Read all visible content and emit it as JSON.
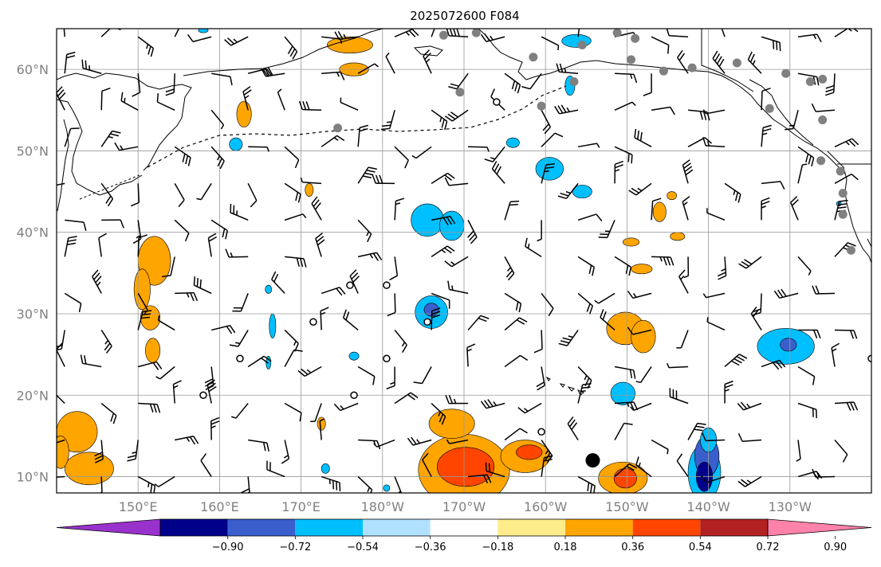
{
  "title": "2025072600 F084",
  "map": {
    "lon_range": [
      140,
      240
    ],
    "lat_range": [
      8,
      65
    ],
    "lon_ticks": [
      {
        "lon": 150,
        "label": "150°E"
      },
      {
        "lon": 160,
        "label": "160°E"
      },
      {
        "lon": 170,
        "label": "170°E"
      },
      {
        "lon": 180,
        "label": "180°W"
      },
      {
        "lon": 190,
        "label": "170°W"
      },
      {
        "lon": 200,
        "label": "160°W"
      },
      {
        "lon": 210,
        "label": "150°W"
      },
      {
        "lon": 220,
        "label": "140°W"
      },
      {
        "lon": 230,
        "label": "130°W"
      }
    ],
    "lat_ticks": [
      {
        "lat": 10,
        "label": "10°N"
      },
      {
        "lat": 20,
        "label": "20°N"
      },
      {
        "lat": 30,
        "label": "30°N"
      },
      {
        "lat": 40,
        "label": "40°N"
      },
      {
        "lat": 50,
        "label": "50°N"
      },
      {
        "lat": 60,
        "label": "60°N"
      }
    ],
    "gridlines": true
  },
  "colorbar": {
    "tick_labels": [
      "−0.90",
      "−0.72",
      "−0.54",
      "−0.36",
      "−0.18",
      "0.18",
      "0.36",
      "0.54",
      "0.72",
      "0.90"
    ],
    "colors": [
      "#9932cc",
      "#00008b",
      "#3a5fcd",
      "#00bfff",
      "#b0e2ff",
      "#ffffff",
      "#ffec8b",
      "#ffa500",
      "#ff4500",
      "#b22222",
      "#ff82ab"
    ],
    "extend": "both"
  },
  "fields": {
    "positive": [
      {
        "lon": 190.0,
        "lat": 10.8,
        "rx": 5.6,
        "ry": 4.4,
        "level": 1
      },
      {
        "lon": 190.2,
        "lat": 11.2,
        "rx": 3.5,
        "ry": 2.4,
        "level": 2
      },
      {
        "lon": 188.5,
        "lat": 16.5,
        "rx": 2.8,
        "ry": 1.8,
        "level": 1
      },
      {
        "lon": 197.5,
        "lat": 12.5,
        "rx": 3.0,
        "ry": 2.0,
        "level": 1
      },
      {
        "lon": 198.0,
        "lat": 13.0,
        "rx": 1.6,
        "ry": 0.9,
        "level": 2
      },
      {
        "lon": 152.0,
        "lat": 36.5,
        "rx": 2.0,
        "ry": 3.0,
        "level": 1
      },
      {
        "lon": 151.5,
        "lat": 29.5,
        "rx": 1.2,
        "ry": 1.5,
        "level": 1
      },
      {
        "lon": 151.8,
        "lat": 25.5,
        "rx": 0.9,
        "ry": 1.5,
        "level": 1
      },
      {
        "lon": 150.5,
        "lat": 33.0,
        "rx": 1.0,
        "ry": 2.5,
        "level": 1
      },
      {
        "lon": 142.5,
        "lat": 15.5,
        "rx": 2.5,
        "ry": 2.5,
        "level": 1
      },
      {
        "lon": 144.0,
        "lat": 11.0,
        "rx": 3.0,
        "ry": 2.0,
        "level": 1
      },
      {
        "lon": 140.5,
        "lat": 13.0,
        "rx": 1.0,
        "ry": 2.0,
        "level": 1
      },
      {
        "lon": 209.8,
        "lat": 28.2,
        "rx": 2.3,
        "ry": 2.0,
        "level": 1
      },
      {
        "lon": 212.0,
        "lat": 27.2,
        "rx": 1.5,
        "ry": 2.0,
        "level": 1
      },
      {
        "lon": 209.5,
        "lat": 9.8,
        "rx": 3.0,
        "ry": 2.0,
        "level": 1
      },
      {
        "lon": 209.8,
        "lat": 9.8,
        "rx": 1.4,
        "ry": 1.2,
        "level": 2
      },
      {
        "lon": 163.0,
        "lat": 54.5,
        "rx": 0.9,
        "ry": 1.6,
        "level": 1
      },
      {
        "lon": 176.0,
        "lat": 63.0,
        "rx": 2.8,
        "ry": 1.0,
        "level": 1
      },
      {
        "lon": 176.5,
        "lat": 60.0,
        "rx": 1.8,
        "ry": 0.8,
        "level": 1
      },
      {
        "lon": 214.0,
        "lat": 42.5,
        "rx": 0.8,
        "ry": 1.2,
        "level": 1
      },
      {
        "lon": 215.5,
        "lat": 44.5,
        "rx": 0.6,
        "ry": 0.5,
        "level": 1
      },
      {
        "lon": 216.2,
        "lat": 39.5,
        "rx": 0.9,
        "ry": 0.5,
        "level": 1
      },
      {
        "lon": 210.5,
        "lat": 38.8,
        "rx": 1.0,
        "ry": 0.5,
        "level": 1
      },
      {
        "lon": 211.8,
        "lat": 35.5,
        "rx": 1.3,
        "ry": 0.6,
        "level": 1
      },
      {
        "lon": 171.0,
        "lat": 45.2,
        "rx": 0.5,
        "ry": 0.8,
        "level": 1
      },
      {
        "lon": 172.5,
        "lat": 16.5,
        "rx": 0.5,
        "ry": 0.8,
        "level": 1
      }
    ],
    "negative": [
      {
        "lon": 185.5,
        "lat": 41.5,
        "rx": 2.0,
        "ry": 2.0,
        "level": 1
      },
      {
        "lon": 188.5,
        "lat": 40.8,
        "rx": 1.5,
        "ry": 1.8,
        "level": 1
      },
      {
        "lon": 186.0,
        "lat": 30.2,
        "rx": 2.0,
        "ry": 2.0,
        "level": 1
      },
      {
        "lon": 186.0,
        "lat": 30.5,
        "rx": 0.9,
        "ry": 0.8,
        "level": 2
      },
      {
        "lon": 200.5,
        "lat": 47.8,
        "rx": 1.7,
        "ry": 1.4,
        "level": 1
      },
      {
        "lon": 204.5,
        "lat": 45.0,
        "rx": 1.2,
        "ry": 0.8,
        "level": 1
      },
      {
        "lon": 196.0,
        "lat": 51.0,
        "rx": 0.8,
        "ry": 0.6,
        "level": 1
      },
      {
        "lon": 203.8,
        "lat": 63.5,
        "rx": 1.8,
        "ry": 0.8,
        "level": 1
      },
      {
        "lon": 203.0,
        "lat": 58.0,
        "rx": 0.6,
        "ry": 1.2,
        "level": 1
      },
      {
        "lon": 162.0,
        "lat": 50.8,
        "rx": 0.8,
        "ry": 0.8,
        "level": 1
      },
      {
        "lon": 158.0,
        "lat": 64.8,
        "rx": 0.6,
        "ry": 0.3,
        "level": 1
      },
      {
        "lon": 209.5,
        "lat": 20.2,
        "rx": 1.5,
        "ry": 1.4,
        "level": 1
      },
      {
        "lon": 219.5,
        "lat": 10.5,
        "rx": 2.0,
        "ry": 3.5,
        "level": 1
      },
      {
        "lon": 219.8,
        "lat": 12.5,
        "rx": 1.5,
        "ry": 2.5,
        "level": 2
      },
      {
        "lon": 219.5,
        "lat": 10.0,
        "rx": 1.0,
        "ry": 1.8,
        "level": 3
      },
      {
        "lon": 220.0,
        "lat": 14.5,
        "rx": 1.0,
        "ry": 1.5,
        "level": 1
      },
      {
        "lon": 229.5,
        "lat": 26.0,
        "rx": 3.5,
        "ry": 2.2,
        "level": 1
      },
      {
        "lon": 229.8,
        "lat": 26.2,
        "rx": 1.0,
        "ry": 0.8,
        "level": 2
      },
      {
        "lon": 173.0,
        "lat": 11.0,
        "rx": 0.5,
        "ry": 0.6,
        "level": 1
      },
      {
        "lon": 166.5,
        "lat": 28.5,
        "rx": 0.4,
        "ry": 1.5,
        "level": 1
      },
      {
        "lon": 166.0,
        "lat": 33.0,
        "rx": 0.4,
        "ry": 0.5,
        "level": 1
      },
      {
        "lon": 176.5,
        "lat": 24.8,
        "rx": 0.6,
        "ry": 0.5,
        "level": 1
      },
      {
        "lon": 166.0,
        "lat": 24.0,
        "rx": 0.3,
        "ry": 0.8,
        "level": 1
      },
      {
        "lon": 236.0,
        "lat": 43.5,
        "rx": 0.3,
        "ry": 0.3,
        "level": 1
      },
      {
        "lon": 180.5,
        "lat": 8.6,
        "rx": 0.4,
        "ry": 0.4,
        "level": 1
      }
    ]
  },
  "stations_gray": [
    [
      187.5,
      64.2
    ],
    [
      191.5,
      64.5
    ],
    [
      198.5,
      61.5
    ],
    [
      204.5,
      63.0
    ],
    [
      208.8,
      64.5
    ],
    [
      211.0,
      63.8
    ],
    [
      203.5,
      58.5
    ],
    [
      210.5,
      61.2
    ],
    [
      214.5,
      59.8
    ],
    [
      218.0,
      60.2
    ],
    [
      223.5,
      60.8
    ],
    [
      229.5,
      59.5
    ],
    [
      232.5,
      58.5
    ],
    [
      227.5,
      55.2
    ],
    [
      199.5,
      55.5
    ],
    [
      189.5,
      57.2
    ],
    [
      174.5,
      52.8
    ],
    [
      234.0,
      53.8
    ],
    [
      233.8,
      48.8
    ],
    [
      236.2,
      47.5
    ],
    [
      236.5,
      44.8
    ],
    [
      236.5,
      42.2
    ],
    [
      237.5,
      37.8
    ],
    [
      234.0,
      58.8
    ]
  ],
  "stations_open": [
    [
      194.0,
      56.0
    ],
    [
      176.0,
      33.5
    ],
    [
      180.5,
      33.5
    ],
    [
      171.5,
      29.0
    ],
    [
      185.5,
      29.0
    ],
    [
      162.5,
      24.5
    ],
    [
      180.5,
      24.5
    ],
    [
      176.5,
      20.0
    ],
    [
      158.0,
      20.0
    ],
    [
      199.5,
      15.5
    ],
    [
      240.0,
      24.5
    ]
  ],
  "stations_black": [
    [
      205.8,
      12.0
    ]
  ],
  "barb_grid": {
    "lon_start": 141,
    "lon_step": 4.5,
    "lon_count": 23,
    "lat_start": 10,
    "lat_step": 4.5,
    "lat_count": 13
  }
}
